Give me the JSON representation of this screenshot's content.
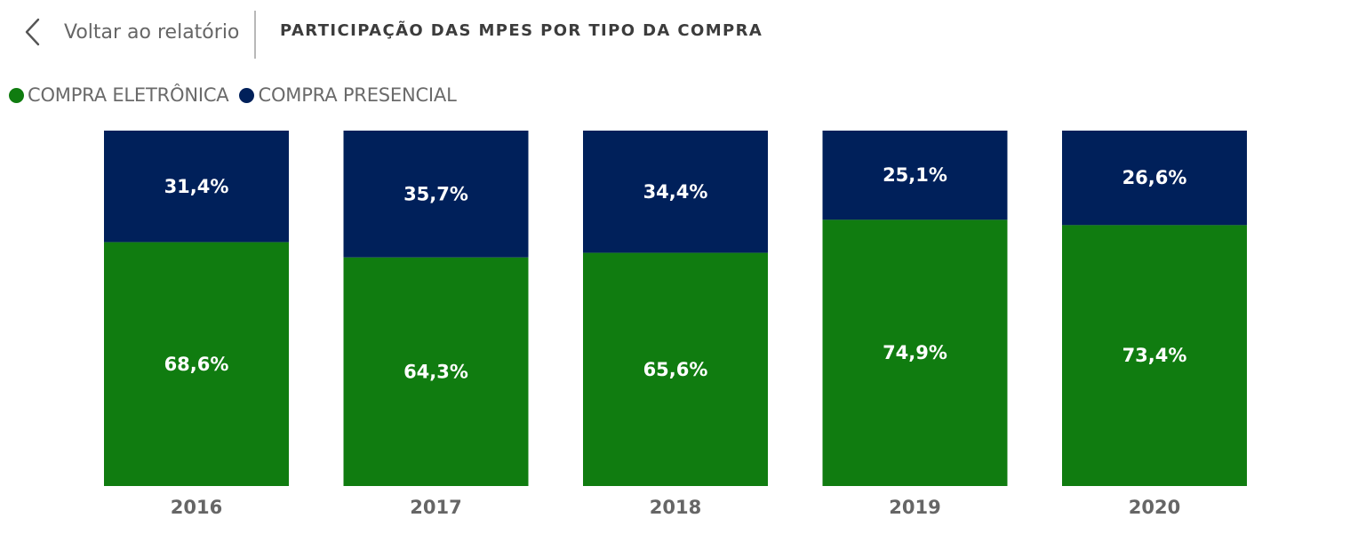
{
  "header": {
    "back_label": "Voltar ao relatório",
    "title": "PARTICIPAÇÃO DAS MPES POR TIPO DA COMPRA"
  },
  "colors": {
    "eletronica": "#107c10",
    "presencial": "#00205a",
    "axis_text": "#666666",
    "bar_text": "#ffffff"
  },
  "legend": [
    {
      "label": "COMPRA ELETRÔNICA",
      "color": "#107c10"
    },
    {
      "label": "COMPRA PRESENCIAL",
      "color": "#00205a"
    }
  ],
  "chart_data": {
    "type": "bar",
    "stacked": true,
    "percent_stacked": true,
    "categories": [
      "2016",
      "2017",
      "2018",
      "2019",
      "2020"
    ],
    "series": [
      {
        "name": "COMPRA ELETRÔNICA",
        "values": [
          68.6,
          64.3,
          65.6,
          74.9,
          73.4
        ],
        "labels": [
          "68,6%",
          "64,3%",
          "65,6%",
          "74,9%",
          "73,4%"
        ]
      },
      {
        "name": "COMPRA PRESENCIAL",
        "values": [
          31.4,
          35.7,
          34.4,
          25.1,
          26.6
        ],
        "labels": [
          "31,4%",
          "35,7%",
          "34,4%",
          "25,1%",
          "26,6%"
        ]
      }
    ],
    "ylim": [
      0,
      100
    ],
    "grid": false,
    "legend_position": "top-left"
  }
}
